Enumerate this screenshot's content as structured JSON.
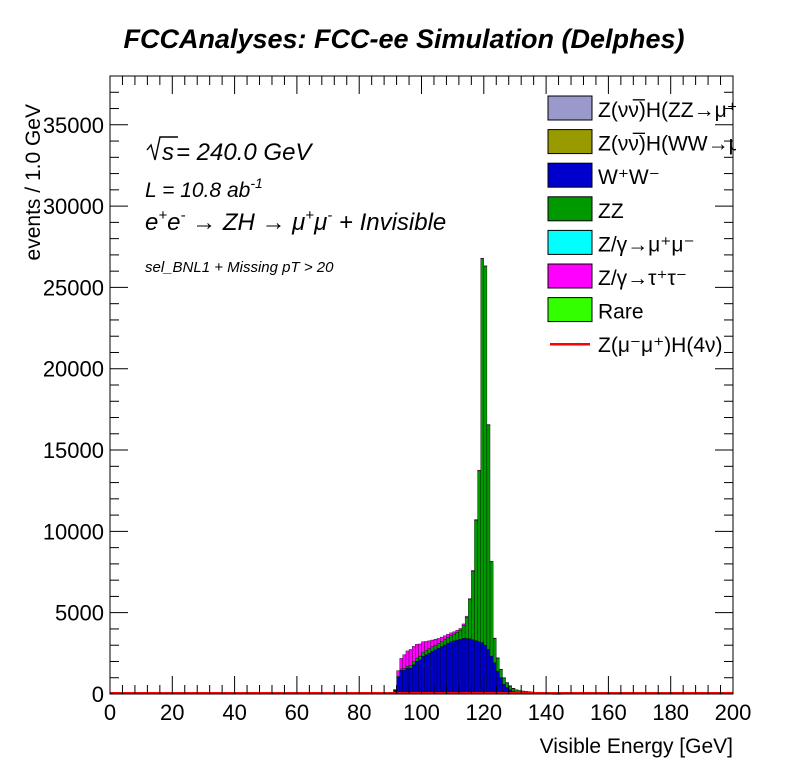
{
  "page": {
    "title": "FCCAnalyses: FCC-ee Simulation (Delphes)"
  },
  "annotations": {
    "energy_lhs": "s",
    "energy_rhs": " = 240.0 GeV",
    "lumi_main": "L = 10.8 ab",
    "lumi_exp": "-1",
    "process": [
      "e",
      "+",
      "e",
      "-",
      " → ZH → μ",
      "+",
      "μ",
      "-",
      " + Invisible"
    ],
    "selection": "sel_BNL1 + Missing pT > 20"
  },
  "chart_data": {
    "type": "bar",
    "stacked": true,
    "histogram": true,
    "xlabel": "Visible Energy [GeV]",
    "ylabel": "events / 1.0 GeV",
    "xlim": [
      0,
      200
    ],
    "ylim": [
      0,
      38000
    ],
    "bin_width": 1.0,
    "x_ticks": [
      "0",
      "20",
      "40",
      "60",
      "80",
      "100",
      "120",
      "140",
      "160",
      "180",
      "200"
    ],
    "y_ticks": [
      "0",
      "5000",
      "10000",
      "15000",
      "20000",
      "25000",
      "30000",
      "35000"
    ],
    "bins_start": 90,
    "series": [
      {
        "key": "znunu_hzz",
        "color": "#9999cc",
        "values": [
          0,
          0,
          0,
          0,
          0,
          0,
          0,
          0,
          0,
          0,
          0,
          0,
          0,
          0,
          0,
          0,
          0,
          0,
          0,
          0,
          0,
          0,
          0,
          0,
          0,
          0,
          0,
          0,
          0,
          0,
          0,
          0,
          0,
          0,
          0,
          0,
          0,
          0,
          0,
          0,
          0,
          0,
          0,
          0,
          0,
          0,
          0,
          0,
          0,
          0,
          0,
          0,
          0,
          0,
          0,
          0,
          0,
          0,
          0,
          0,
          0
        ]
      },
      {
        "key": "znunu_hww",
        "color": "#999900",
        "values": [
          0,
          10,
          40,
          60,
          70,
          80,
          90,
          100,
          110,
          110,
          120,
          120,
          120,
          120,
          120,
          120,
          120,
          120,
          120,
          120,
          120,
          120,
          120,
          120,
          110,
          100,
          90,
          80,
          70,
          60,
          50,
          40,
          30,
          20,
          10,
          10,
          0,
          0,
          0,
          0,
          0,
          0,
          0,
          0,
          0,
          0,
          0,
          0,
          0,
          0,
          0,
          0,
          0,
          0,
          0,
          0,
          0,
          0,
          0,
          0,
          0
        ]
      },
      {
        "key": "ww",
        "color": "#0000cc",
        "values": [
          0,
          200,
          1000,
          1400,
          1400,
          1500,
          1500,
          1700,
          1900,
          2000,
          2200,
          2300,
          2400,
          2500,
          2600,
          2700,
          2800,
          2900,
          3000,
          3100,
          3150,
          3200,
          3250,
          3300,
          3300,
          3300,
          3250,
          3200,
          3150,
          3100,
          2950,
          2700,
          2300,
          1900,
          1400,
          1000,
          600,
          400,
          250,
          150,
          120,
          100,
          90,
          80,
          70,
          60,
          50,
          40,
          30,
          20,
          15,
          10,
          5,
          5,
          0,
          0,
          0,
          0,
          0,
          0,
          0
        ]
      },
      {
        "key": "zz",
        "color": "#009900",
        "values": [
          0,
          20,
          50,
          80,
          100,
          120,
          150,
          180,
          200,
          220,
          250,
          260,
          270,
          280,
          290,
          300,
          320,
          340,
          360,
          380,
          420,
          480,
          560,
          800,
          1300,
          2400,
          4200,
          7400,
          10500,
          23600,
          23300,
          13800,
          5800,
          1500,
          800,
          500,
          400,
          300,
          250,
          200,
          150,
          120,
          100,
          90,
          80,
          70,
          60,
          50,
          40,
          30,
          20,
          15,
          10,
          5,
          5,
          0,
          0,
          0,
          0,
          0,
          0
        ]
      },
      {
        "key": "zgamma_mumu",
        "color": "#00ffff",
        "values": [
          0,
          0,
          0,
          0,
          0,
          0,
          0,
          0,
          0,
          0,
          0,
          0,
          0,
          0,
          0,
          0,
          0,
          0,
          0,
          0,
          0,
          0,
          0,
          0,
          0,
          0,
          0,
          0,
          0,
          0,
          0,
          0,
          0,
          0,
          0,
          0,
          0,
          0,
          0,
          0,
          0,
          0,
          0,
          0,
          0,
          0,
          0,
          0,
          0,
          0,
          0,
          0,
          0,
          0,
          0,
          0,
          0,
          0,
          0,
          0,
          0
        ]
      },
      {
        "key": "zgamma_tautau",
        "color": "#ff00ff",
        "values": [
          0,
          50,
          350,
          650,
          850,
          950,
          1000,
          950,
          850,
          750,
          650,
          550,
          480,
          420,
          360,
          300,
          260,
          220,
          190,
          160,
          140,
          120,
          100,
          90,
          80,
          70,
          60,
          50,
          45,
          40,
          35,
          30,
          25,
          20,
          15,
          10,
          8,
          6,
          4,
          2,
          0,
          0,
          0,
          0,
          0,
          0,
          0,
          0,
          0,
          0,
          0,
          0,
          0,
          0,
          0,
          0,
          0,
          0,
          0,
          0,
          0
        ]
      },
      {
        "key": "rare",
        "color": "#33ff00",
        "values": [
          0,
          0,
          0,
          0,
          0,
          0,
          0,
          0,
          0,
          0,
          0,
          0,
          0,
          0,
          0,
          0,
          0,
          0,
          0,
          0,
          0,
          0,
          0,
          0,
          0,
          0,
          0,
          0,
          0,
          0,
          0,
          0,
          0,
          0,
          0,
          0,
          0,
          0,
          0,
          0,
          0,
          0,
          0,
          0,
          0,
          0,
          0,
          0,
          0,
          0,
          0,
          0,
          0,
          0,
          0,
          0,
          0,
          0,
          0,
          0,
          0
        ]
      }
    ],
    "signal": {
      "key": "zmumu_h4nu",
      "color": "#ff0000",
      "style": "line",
      "value": 0
    },
    "legend": {
      "placement": "top-right",
      "entries": [
        {
          "key": "znunu_hzz",
          "label": "Z(νν̅)H(ZZ→μ⁺μ⁻ν⁺",
          "style": "box",
          "color": "#9999cc"
        },
        {
          "key": "znunu_hww",
          "label": "Z(νν̅)H(WW→μ⁺νμ",
          "style": "box",
          "color": "#999900"
        },
        {
          "key": "ww",
          "label": "W⁺W⁻",
          "style": "box",
          "color": "#0000cc"
        },
        {
          "key": "zz",
          "label": "ZZ",
          "style": "box",
          "color": "#009900"
        },
        {
          "key": "zgamma_mumu",
          "label": "Z/γ→μ⁺μ⁻",
          "style": "box",
          "color": "#00ffff"
        },
        {
          "key": "zgamma_tautau",
          "label": "Z/γ→τ⁺τ⁻",
          "style": "box",
          "color": "#ff00ff"
        },
        {
          "key": "rare",
          "label": "Rare",
          "style": "box",
          "color": "#33ff00"
        },
        {
          "key": "zmumu_h4nu",
          "label": "Z(μ⁻μ⁺)H(4ν)",
          "style": "line",
          "color": "#ff0000"
        }
      ]
    }
  }
}
